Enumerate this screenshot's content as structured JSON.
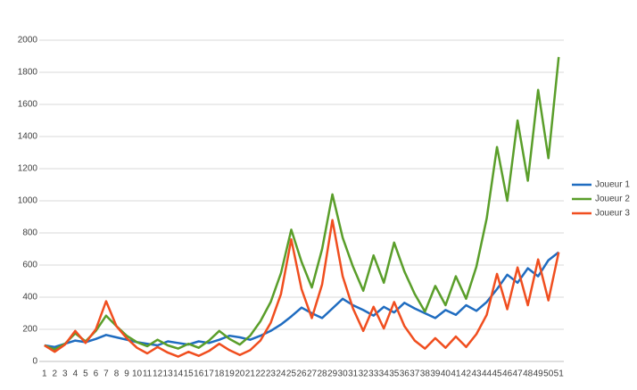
{
  "chart_data": {
    "type": "line",
    "categories": [
      "1",
      "2",
      "3",
      "4",
      "5",
      "6",
      "7",
      "8",
      "9",
      "10",
      "11",
      "12",
      "13",
      "14",
      "15",
      "16",
      "17",
      "18",
      "19",
      "20",
      "21",
      "22",
      "23",
      "24",
      "25",
      "26",
      "27",
      "28",
      "29",
      "30",
      "31",
      "32",
      "33",
      "34",
      "35",
      "36",
      "37",
      "38",
      "39",
      "40",
      "41",
      "42",
      "43",
      "44",
      "45",
      "46",
      "47",
      "48",
      "49",
      "50",
      "51"
    ],
    "series": [
      {
        "name": "Joueur 1",
        "color": "#1f6cc0",
        "values": [
          100,
          90,
          110,
          130,
          120,
          140,
          165,
          150,
          135,
          120,
          110,
          100,
          125,
          115,
          105,
          125,
          115,
          135,
          160,
          150,
          135,
          160,
          190,
          230,
          280,
          335,
          300,
          270,
          330,
          390,
          350,
          320,
          285,
          340,
          305,
          365,
          330,
          300,
          270,
          320,
          290,
          350,
          315,
          370,
          450,
          540,
          490,
          580,
          530,
          630,
          680
        ]
      },
      {
        "name": "Joueur 2",
        "color": "#5a9e2a",
        "values": [
          100,
          75,
          110,
          175,
          125,
          190,
          285,
          220,
          160,
          120,
          95,
          135,
          100,
          80,
          110,
          85,
          130,
          190,
          140,
          105,
          160,
          250,
          370,
          550,
          820,
          620,
          460,
          700,
          1040,
          770,
          590,
          440,
          660,
          490,
          740,
          560,
          420,
          310,
          470,
          350,
          530,
          390,
          590,
          890,
          1335,
          1000,
          1500,
          1125,
          1690,
          1265,
          1895
        ]
      },
      {
        "name": "Joueur 3",
        "color": "#f04e1f",
        "values": [
          100,
          60,
          105,
          190,
          115,
          200,
          375,
          220,
          145,
          85,
          50,
          90,
          55,
          30,
          60,
          35,
          65,
          110,
          70,
          40,
          70,
          130,
          240,
          420,
          760,
          450,
          270,
          480,
          880,
          530,
          330,
          190,
          340,
          205,
          370,
          220,
          130,
          80,
          145,
          85,
          155,
          90,
          170,
          290,
          545,
          325,
          585,
          350,
          635,
          380,
          680
        ]
      }
    ],
    "ylim": [
      0,
      2000
    ],
    "yticks": [
      0,
      200,
      400,
      600,
      800,
      1000,
      1200,
      1400,
      1600,
      1800,
      2000
    ],
    "grid": true,
    "legend": "right"
  }
}
